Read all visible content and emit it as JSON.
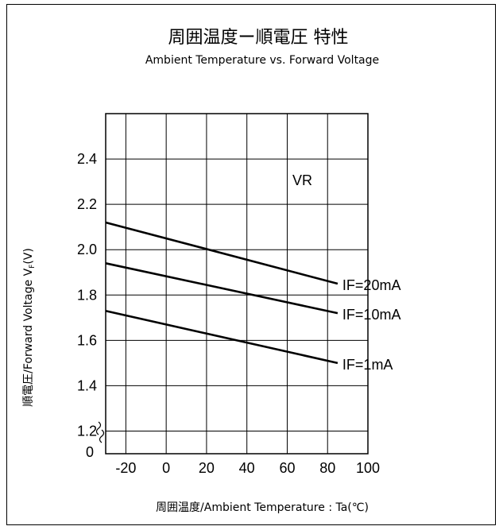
{
  "chart_data": {
    "type": "line",
    "title": "周囲温度ー順電圧 特性",
    "subtitle": "Ambient Temperature vs. Forward Voltage",
    "xlabel": "周囲温度/Ambient Temperature : Ta(℃)",
    "ylabel": "順電圧/Forward Voltage V",
    "ylabel_sub": "F",
    "ylabel_unit": "(V)",
    "annotation": "VR",
    "xlim": [
      -30,
      100
    ],
    "xticks": [
      -20,
      0,
      20,
      40,
      60,
      80,
      100
    ],
    "xtick_labels": [
      "-20",
      "0",
      "20",
      "40",
      "60",
      "80",
      "100"
    ],
    "ylim": [
      1.1,
      2.6
    ],
    "yticks": [
      1.2,
      1.4,
      1.6,
      1.8,
      2.0,
      2.2,
      2.4
    ],
    "ytick_labels": [
      "1.2",
      "1.4",
      "1.6",
      "1.8",
      "2.0",
      "2.2",
      "2.4"
    ],
    "y_origin_label": "0",
    "axis_break": true,
    "grid": true,
    "series": [
      {
        "name": "IF=20mA",
        "x": [
          -30,
          85
        ],
        "y": [
          2.12,
          1.85
        ]
      },
      {
        "name": "IF=10mA",
        "x": [
          -30,
          85
        ],
        "y": [
          1.94,
          1.72
        ]
      },
      {
        "name": "IF=1mA",
        "x": [
          -30,
          85
        ],
        "y": [
          1.73,
          1.5
        ]
      }
    ]
  }
}
